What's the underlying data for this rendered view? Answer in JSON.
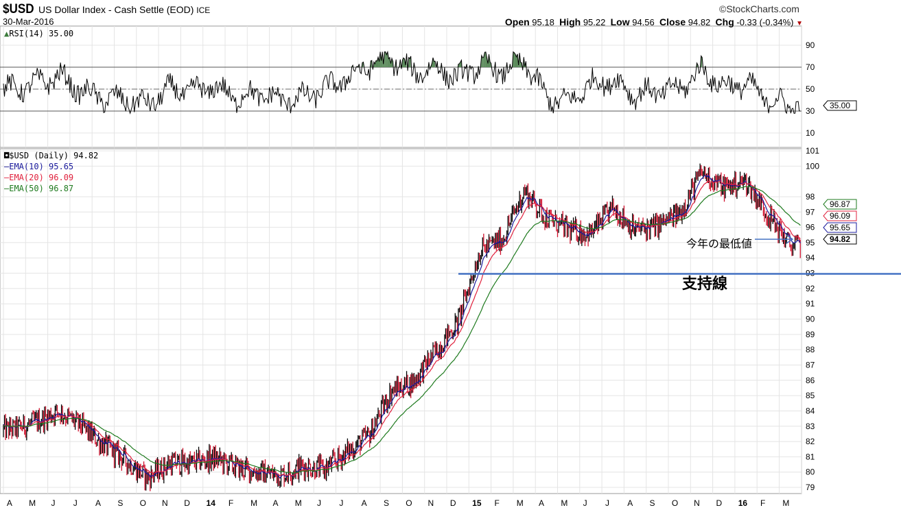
{
  "header": {
    "symbol": "$USD",
    "title": "US Dollar Index - Cash Settle (EOD)",
    "exchange": "ICE",
    "date": "30-Mar-2016",
    "brand": "©StockCharts.com",
    "open_label": "Open",
    "open": "95.18",
    "high_label": "High",
    "high": "95.22",
    "low_label": "Low",
    "low": "94.56",
    "close_label": "Close",
    "close": "94.82",
    "chg_label": "Chg",
    "chg": "-0.33 (-0.34%)"
  },
  "rsi_panel": {
    "legend": "RSI(14) 35.00",
    "current_tag": "35.00"
  },
  "price_panel": {
    "legend": "$USD (Daily) 94.82",
    "ema10": "EMA(10) 95.65",
    "ema20": "EMA(20) 96.09",
    "ema50": "EMA(50) 96.87",
    "tags": {
      "ema50": "96.87",
      "ema20": "96.09",
      "ema10": "95.65",
      "close": "94.82"
    }
  },
  "annotations": {
    "year_low": "今年の最低値",
    "support": "支持線",
    "support_level": 93
  },
  "colors": {
    "ema10": "#1a1a9c",
    "ema20": "#e0203c",
    "ema50": "#1e7a1e",
    "support": "#4472c4",
    "rsi_fill": "#5a8a5a"
  },
  "chart_data": [
    {
      "type": "line",
      "title": "RSI(14)",
      "yticks": [
        90,
        70,
        50,
        30,
        10
      ],
      "ylim": [
        0,
        100
      ],
      "overbought": 70,
      "oversold": 30,
      "x": [
        "Apr13",
        "May13",
        "Jun13",
        "Jul13",
        "Aug13",
        "Sep13",
        "Oct13",
        "Nov13",
        "Dec13",
        "Jan14",
        "Feb14",
        "Mar14",
        "Apr14",
        "May14",
        "Jun14",
        "Jul14",
        "Aug14",
        "Sep14",
        "Oct14",
        "Nov14",
        "Dec14",
        "Jan15",
        "Feb15",
        "Mar15",
        "Apr15",
        "May15",
        "Jun15",
        "Jul15",
        "Aug15",
        "Sep15",
        "Oct15",
        "Nov15",
        "Dec15",
        "Jan16",
        "Feb16",
        "Mar16"
      ],
      "values": [
        50,
        55,
        62,
        48,
        42,
        40,
        36,
        50,
        48,
        52,
        42,
        46,
        40,
        42,
        50,
        60,
        72,
        78,
        65,
        70,
        60,
        72,
        66,
        75,
        42,
        38,
        55,
        58,
        45,
        48,
        50,
        68,
        52,
        55,
        40,
        35
      ]
    },
    {
      "type": "candlestick",
      "title": "$USD (Daily)",
      "ylim": [
        78.5,
        101
      ],
      "yticks": [
        101,
        100,
        98,
        97,
        96,
        95,
        94,
        93,
        92,
        91,
        90,
        89,
        88,
        87,
        86,
        85,
        84,
        83,
        82,
        81,
        80,
        79
      ],
      "xticks": [
        "A",
        "M",
        "J",
        "J",
        "A",
        "S",
        "O",
        "N",
        "D",
        "14",
        "F",
        "M",
        "A",
        "M",
        "J",
        "J",
        "A",
        "S",
        "O",
        "N",
        "D",
        "15",
        "F",
        "M",
        "A",
        "M",
        "J",
        "J",
        "A",
        "S",
        "O",
        "N",
        "D",
        "16",
        "F",
        "M"
      ],
      "x": [
        "Apr13",
        "May13",
        "Jun13",
        "Jul13",
        "Aug13",
        "Sep13",
        "Oct13",
        "Nov13",
        "Dec13",
        "Jan14",
        "Feb14",
        "Mar14",
        "Apr14",
        "May14",
        "Jun14",
        "Jul14",
        "Aug14",
        "Sep14",
        "Oct14",
        "Nov14",
        "Dec14",
        "Jan15",
        "Feb15",
        "Mar15",
        "Apr15",
        "May15",
        "Jun15",
        "Jul15",
        "Aug15",
        "Sep15",
        "Oct15",
        "Nov15",
        "Dec15",
        "Jan16",
        "Feb16",
        "Mar16"
      ],
      "close": [
        82.8,
        83.3,
        84.0,
        83.0,
        81.8,
        80.8,
        79.6,
        80.6,
        80.6,
        80.9,
        80.3,
        80.0,
        79.8,
        80.4,
        80.2,
        81.3,
        82.4,
        85.3,
        85.9,
        87.9,
        89.8,
        94.5,
        95.2,
        98.4,
        96.6,
        95.8,
        95.6,
        97.3,
        95.8,
        96.1,
        96.9,
        99.6,
        98.6,
        99.0,
        96.8,
        94.8
      ],
      "series": [
        {
          "name": "EMA(10)",
          "last": 95.65
        },
        {
          "name": "EMA(20)",
          "last": 96.09
        },
        {
          "name": "EMA(50)",
          "last": 96.87
        }
      ]
    }
  ]
}
